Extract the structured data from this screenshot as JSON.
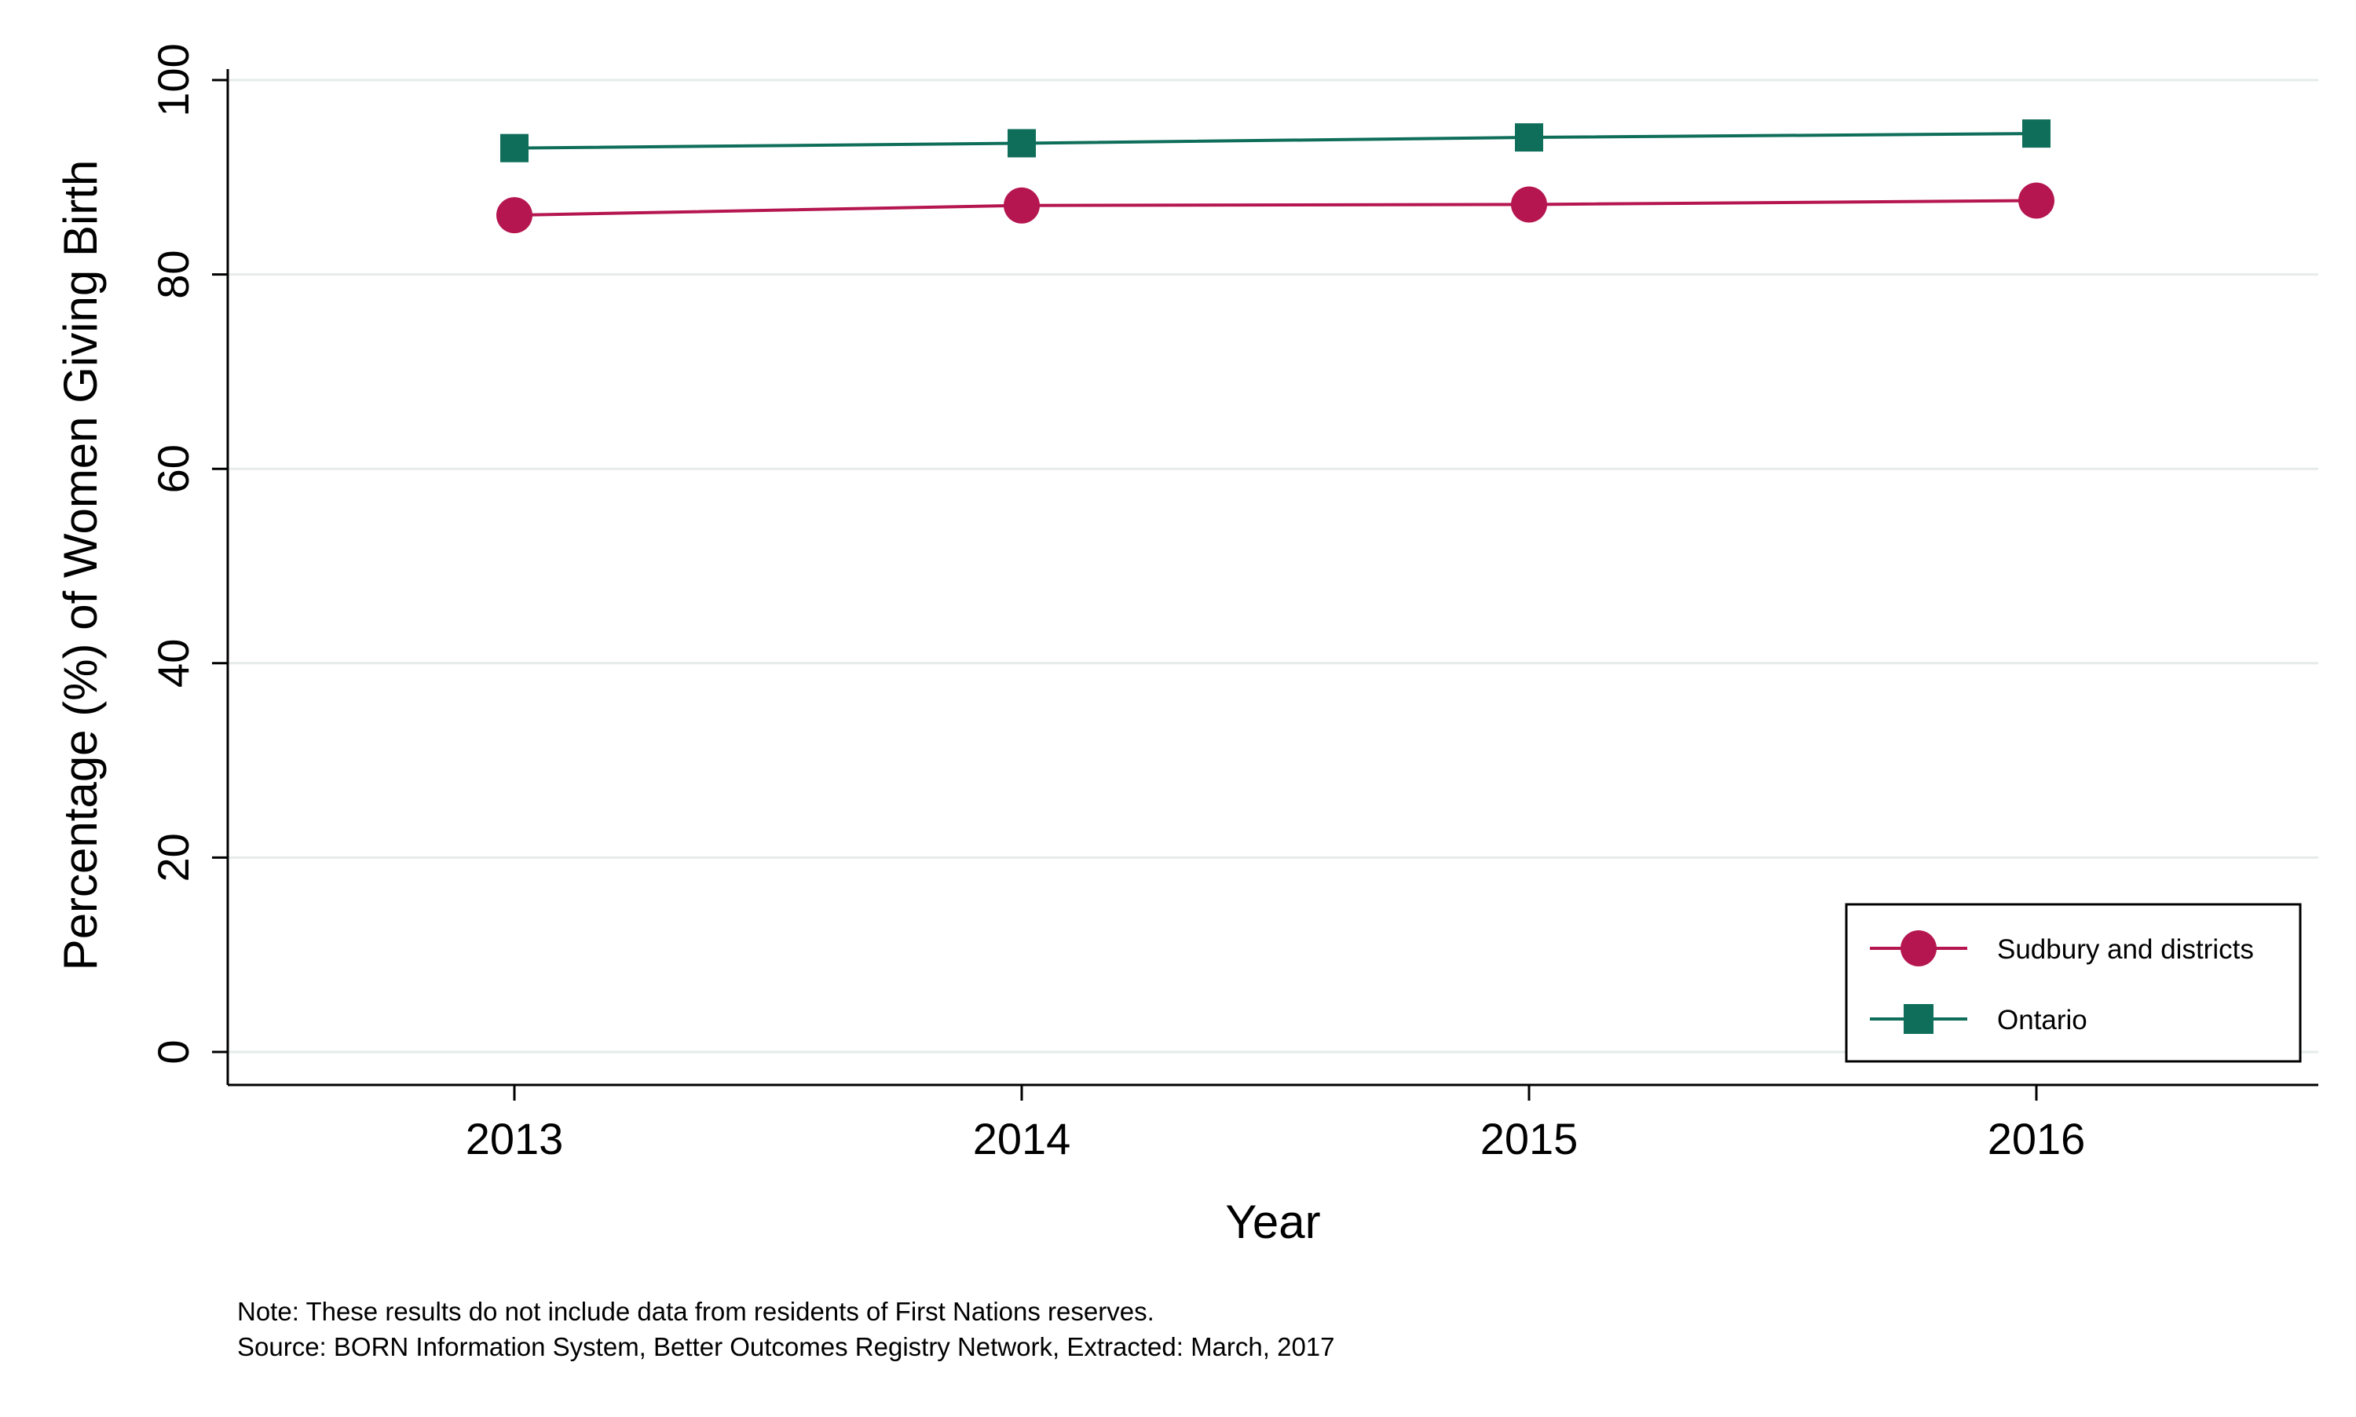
{
  "chart_data": {
    "type": "line",
    "title": "",
    "xlabel": "Year",
    "ylabel": "Percentage (%) of Women Giving Birth",
    "categories": [
      "2013",
      "2014",
      "2015",
      "2016"
    ],
    "ylim": [
      0,
      100
    ],
    "yticks": [
      0,
      20,
      40,
      60,
      80,
      100
    ],
    "grid": true,
    "legend_position": "bottom-right",
    "series": [
      {
        "name": "Sudbury and districts",
        "values": [
          86.1,
          87.1,
          87.2,
          87.6
        ],
        "color": "#b5164f",
        "marker": "circle"
      },
      {
        "name": "Ontario",
        "values": [
          93.0,
          93.5,
          94.1,
          94.5
        ],
        "color": "#0e6e5a",
        "marker": "square"
      }
    ]
  },
  "notes": {
    "note": "Note: These results do not include data from residents of First Nations reserves.",
    "source": "Source: BORN Information System, Better Outcomes Registry Network, Extracted: March, 2017"
  }
}
